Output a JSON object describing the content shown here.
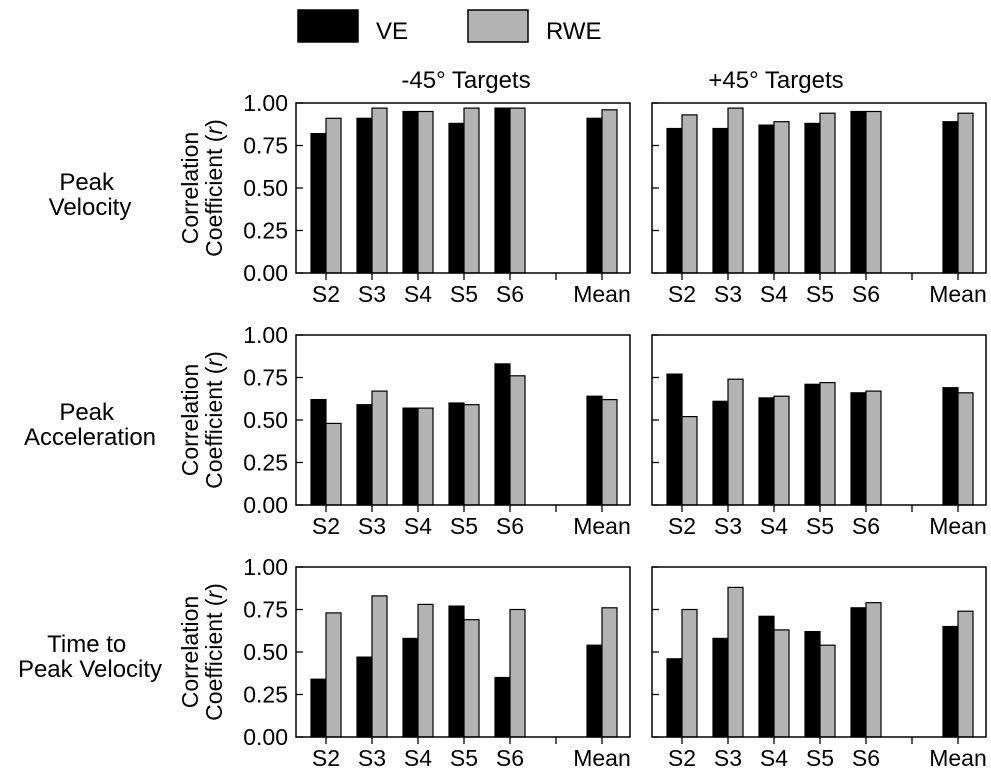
{
  "legend": {
    "position": "top-center",
    "items": [
      {
        "label": "VE",
        "color": "#000000"
      },
      {
        "label": "RWE",
        "color": "#b3b3b3"
      }
    ]
  },
  "columns": [
    "-45° Targets",
    "+45° Targets"
  ],
  "rows": [
    {
      "label_lines": [
        "Peak",
        "Velocity"
      ]
    },
    {
      "label_lines": [
        "Peak",
        "Acceleration"
      ]
    },
    {
      "label_lines": [
        "Time to",
        "Peak Velocity"
      ]
    }
  ],
  "ylabel_lines": [
    "Correlation",
    "Coefficient (r)"
  ],
  "chart_data": [
    {
      "type": "bar",
      "row": "Peak Velocity",
      "column": "-45° Targets",
      "categories": [
        "S2",
        "S3",
        "S4",
        "S5",
        "S6",
        "Mean"
      ],
      "series": [
        {
          "name": "VE",
          "values": [
            0.82,
            0.91,
            0.95,
            0.88,
            0.97,
            0.91
          ]
        },
        {
          "name": "RWE",
          "values": [
            0.91,
            0.97,
            0.95,
            0.97,
            0.97,
            0.96
          ]
        }
      ],
      "ylabel": "Correlation Coefficient (r)",
      "ylim": [
        0,
        1
      ],
      "yticks": [
        "0.00",
        "0.25",
        "0.50",
        "0.75",
        "1.00"
      ],
      "grid": false
    },
    {
      "type": "bar",
      "row": "Peak Velocity",
      "column": "+45° Targets",
      "categories": [
        "S2",
        "S3",
        "S4",
        "S5",
        "S6",
        "Mean"
      ],
      "series": [
        {
          "name": "VE",
          "values": [
            0.85,
            0.85,
            0.87,
            0.88,
            0.95,
            0.89
          ]
        },
        {
          "name": "RWE",
          "values": [
            0.93,
            0.97,
            0.89,
            0.94,
            0.95,
            0.94
          ]
        }
      ],
      "ylim": [
        0,
        1
      ],
      "grid": false
    },
    {
      "type": "bar",
      "row": "Peak Acceleration",
      "column": "-45° Targets",
      "categories": [
        "S2",
        "S3",
        "S4",
        "S5",
        "S6",
        "Mean"
      ],
      "series": [
        {
          "name": "VE",
          "values": [
            0.62,
            0.59,
            0.57,
            0.6,
            0.83,
            0.64
          ]
        },
        {
          "name": "RWE",
          "values": [
            0.48,
            0.67,
            0.57,
            0.59,
            0.76,
            0.62
          ]
        }
      ],
      "ylabel": "Correlation Coefficient (r)",
      "ylim": [
        0,
        1
      ],
      "yticks": [
        "0.00",
        "0.25",
        "0.50",
        "0.75",
        "1.00"
      ],
      "grid": false
    },
    {
      "type": "bar",
      "row": "Peak Acceleration",
      "column": "+45° Targets",
      "categories": [
        "S2",
        "S3",
        "S4",
        "S5",
        "S6",
        "Mean"
      ],
      "series": [
        {
          "name": "VE",
          "values": [
            0.77,
            0.61,
            0.63,
            0.71,
            0.66,
            0.69
          ]
        },
        {
          "name": "RWE",
          "values": [
            0.52,
            0.74,
            0.64,
            0.72,
            0.67,
            0.66
          ]
        }
      ],
      "ylim": [
        0,
        1
      ],
      "grid": false
    },
    {
      "type": "bar",
      "row": "Time to Peak Velocity",
      "column": "-45° Targets",
      "categories": [
        "S2",
        "S3",
        "S4",
        "S5",
        "S6",
        "Mean"
      ],
      "series": [
        {
          "name": "VE",
          "values": [
            0.34,
            0.47,
            0.58,
            0.77,
            0.35,
            0.54
          ]
        },
        {
          "name": "RWE",
          "values": [
            0.73,
            0.83,
            0.78,
            0.69,
            0.75,
            0.76
          ]
        }
      ],
      "ylabel": "Correlation Coefficient (r)",
      "ylim": [
        0,
        1
      ],
      "yticks": [
        "0.00",
        "0.25",
        "0.50",
        "0.75",
        "1.00"
      ],
      "grid": false
    },
    {
      "type": "bar",
      "row": "Time to Peak Velocity",
      "column": "+45° Targets",
      "categories": [
        "S2",
        "S3",
        "S4",
        "S5",
        "S6",
        "Mean"
      ],
      "series": [
        {
          "name": "VE",
          "values": [
            0.46,
            0.58,
            0.71,
            0.62,
            0.76,
            0.65
          ]
        },
        {
          "name": "RWE",
          "values": [
            0.75,
            0.88,
            0.63,
            0.54,
            0.79,
            0.74
          ]
        }
      ],
      "ylim": [
        0,
        1
      ],
      "grid": false
    }
  ]
}
